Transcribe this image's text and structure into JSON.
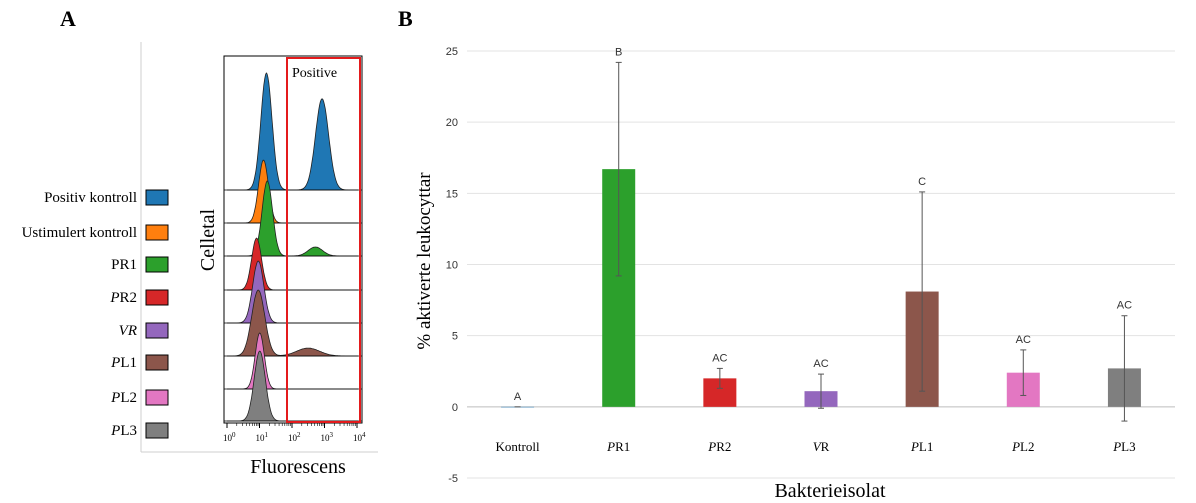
{
  "panel_a": {
    "letter": "A",
    "ylabel": "Celletal",
    "xlabel": "Fluorescens",
    "gate_label": "Positive",
    "x_ticks": [
      {
        "base": "10",
        "exp": "0"
      },
      {
        "base": "10",
        "exp": "1"
      },
      {
        "base": "10",
        "exp": "2"
      },
      {
        "base": "10",
        "exp": "3"
      },
      {
        "base": "10",
        "exp": "4"
      }
    ],
    "legend": [
      {
        "label": "Positiv kontroll",
        "italic_prefix": "",
        "rest": "Positiv kontroll",
        "color": "#1f77b4"
      },
      {
        "label": "Ustimulert kontroll",
        "italic_prefix": "",
        "rest": "Ustimulert kontroll",
        "color": "#ff7f0e"
      },
      {
        "label": "PR1",
        "italic_prefix": "",
        "rest": "PR1",
        "color": "#2ca02c"
      },
      {
        "label": "PR2",
        "italic_prefix": "P",
        "rest": "R2",
        "color": "#d62728"
      },
      {
        "label": "VR",
        "italic_prefix": "VR",
        "rest": "",
        "color": "#9467bd"
      },
      {
        "label": "PL1",
        "italic_prefix": "P",
        "rest": "L1",
        "color": "#8c564b"
      },
      {
        "label": "PL2",
        "italic_prefix": "P",
        "rest": "L2",
        "color": "#e377c2"
      },
      {
        "label": "PL3",
        "italic_prefix": "P",
        "rest": "L3",
        "color": "#7f7f7f"
      }
    ]
  },
  "chart_data": [
    {
      "type": "area",
      "xlabel": "Fluorescens",
      "ylabel": "Celletal",
      "x_scale": "log",
      "xlim": [
        1,
        10000
      ],
      "gate": {
        "label": "Positive",
        "x_range": [
          70,
          10000
        ]
      },
      "series": [
        {
          "name": "Positiv kontroll",
          "color": "#1f77b4",
          "peaks": [
            {
              "center": 16,
              "height": 1.0,
              "width": 0.17
            },
            {
              "center": 800,
              "height": 0.78,
              "width": 0.2
            }
          ]
        },
        {
          "name": "Ustimulert kontroll",
          "color": "#ff7f0e",
          "peaks": [
            {
              "center": 13,
              "height": 1.0,
              "width": 0.15
            }
          ]
        },
        {
          "name": "PR1",
          "color": "#2ca02c",
          "peaks": [
            {
              "center": 17,
              "height": 1.0,
              "width": 0.16
            },
            {
              "center": 500,
              "height": 0.12,
              "width": 0.22
            }
          ]
        },
        {
          "name": "PR2",
          "color": "#d62728",
          "peaks": [
            {
              "center": 8,
              "height": 1.0,
              "width": 0.15
            }
          ]
        },
        {
          "name": "VR",
          "color": "#9467bd",
          "peaks": [
            {
              "center": 9,
              "height": 1.0,
              "width": 0.17
            }
          ]
        },
        {
          "name": "PL1",
          "color": "#8c564b",
          "peaks": [
            {
              "center": 9,
              "height": 1.0,
              "width": 0.2
            },
            {
              "center": 300,
              "height": 0.12,
              "width": 0.35
            }
          ]
        },
        {
          "name": "PL2",
          "color": "#e377c2",
          "peaks": [
            {
              "center": 10,
              "height": 1.0,
              "width": 0.14
            }
          ]
        },
        {
          "name": "PL3",
          "color": "#7f7f7f",
          "peaks": [
            {
              "center": 10,
              "height": 1.0,
              "width": 0.17
            }
          ]
        }
      ]
    },
    {
      "type": "bar",
      "panel_letter": "B",
      "xlabel": "Bakterieisolat",
      "ylabel": "% aktiverte leukocyttar",
      "ylim": [
        -5,
        25
      ],
      "yticks": [
        -5,
        0,
        5,
        10,
        15,
        20,
        25
      ],
      "grid": true,
      "categories": [
        {
          "label": "Kontroll",
          "italic_prefix": "",
          "rest": "Kontroll"
        },
        {
          "label": "PR1",
          "italic_prefix": "P",
          "rest": "R1"
        },
        {
          "label": "PR2",
          "italic_prefix": "P",
          "rest": "R2"
        },
        {
          "label": "VR",
          "italic_prefix": "V",
          "rest": "R"
        },
        {
          "label": "PL1",
          "italic_prefix": "P",
          "rest": "L1"
        },
        {
          "label": "PL2",
          "italic_prefix": "P",
          "rest": "L2"
        },
        {
          "label": "PL3",
          "italic_prefix": "P",
          "rest": "L3"
        }
      ],
      "values": [
        0,
        16.7,
        2.0,
        1.1,
        8.1,
        2.4,
        2.7
      ],
      "errors": [
        0,
        7.5,
        0.7,
        1.2,
        7.0,
        1.6,
        3.7
      ],
      "letters": [
        "A",
        "B",
        "AC",
        "AC",
        "C",
        "AC",
        "AC"
      ],
      "colors": [
        "#1f77b4",
        "#2ca02c",
        "#d62728",
        "#9467bd",
        "#8c564b",
        "#e377c2",
        "#7f7f7f"
      ]
    }
  ]
}
